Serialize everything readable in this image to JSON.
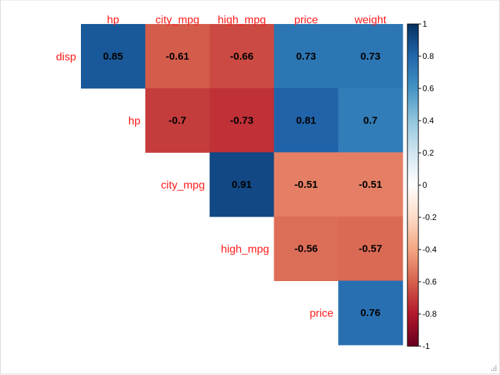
{
  "chart_data": {
    "type": "heatmap",
    "layout": "upper-triangle",
    "columns": [
      "hp",
      "city_mpg",
      "high_mpg",
      "price",
      "weight"
    ],
    "rows": [
      "disp",
      "hp",
      "city_mpg",
      "high_mpg",
      "price"
    ],
    "cells": [
      {
        "row": "disp",
        "col": "hp",
        "value": 0.85,
        "label": "0.85"
      },
      {
        "row": "disp",
        "col": "city_mpg",
        "value": -0.61,
        "label": "-0.61"
      },
      {
        "row": "disp",
        "col": "high_mpg",
        "value": -0.66,
        "label": "-0.66"
      },
      {
        "row": "disp",
        "col": "price",
        "value": 0.73,
        "label": "0.73"
      },
      {
        "row": "disp",
        "col": "weight",
        "value": 0.73,
        "label": "0.73"
      },
      {
        "row": "hp",
        "col": "city_mpg",
        "value": -0.7,
        "label": "-0.7"
      },
      {
        "row": "hp",
        "col": "high_mpg",
        "value": -0.73,
        "label": "-0.73"
      },
      {
        "row": "hp",
        "col": "price",
        "value": 0.81,
        "label": "0.81"
      },
      {
        "row": "hp",
        "col": "weight",
        "value": 0.7,
        "label": "0.7"
      },
      {
        "row": "city_mpg",
        "col": "high_mpg",
        "value": 0.91,
        "label": "0.91"
      },
      {
        "row": "city_mpg",
        "col": "price",
        "value": -0.51,
        "label": "-0.51"
      },
      {
        "row": "city_mpg",
        "col": "weight",
        "value": -0.51,
        "label": "-0.51"
      },
      {
        "row": "high_mpg",
        "col": "price",
        "value": -0.56,
        "label": "-0.56"
      },
      {
        "row": "high_mpg",
        "col": "weight",
        "value": -0.57,
        "label": "-0.57"
      },
      {
        "row": "price",
        "col": "weight",
        "value": 0.76,
        "label": "0.76"
      }
    ],
    "color_scale": {
      "range": [
        -1,
        1
      ],
      "ticks": [
        {
          "value": 1,
          "label": "1"
        },
        {
          "value": 0.8,
          "label": "0.8"
        },
        {
          "value": 0.6,
          "label": "0.6"
        },
        {
          "value": 0.4,
          "label": "0.4"
        },
        {
          "value": 0.2,
          "label": "0.2"
        },
        {
          "value": 0,
          "label": "0"
        },
        {
          "value": -0.2,
          "label": "-0.2"
        },
        {
          "value": -0.4,
          "label": "-0.4"
        },
        {
          "value": -0.6,
          "label": "-0.6"
        },
        {
          "value": -0.8,
          "label": "-0.8"
        },
        {
          "value": -1,
          "label": "-1"
        }
      ],
      "colors": [
        "#67001F",
        "#B2182B",
        "#D6604D",
        "#F4A582",
        "#FDDBC7",
        "#FFFFFF",
        "#D1E5F0",
        "#92C5DE",
        "#4393C3",
        "#2166AC",
        "#053061"
      ]
    },
    "label_color": "#FF1A1A",
    "legend_placement": "right"
  }
}
